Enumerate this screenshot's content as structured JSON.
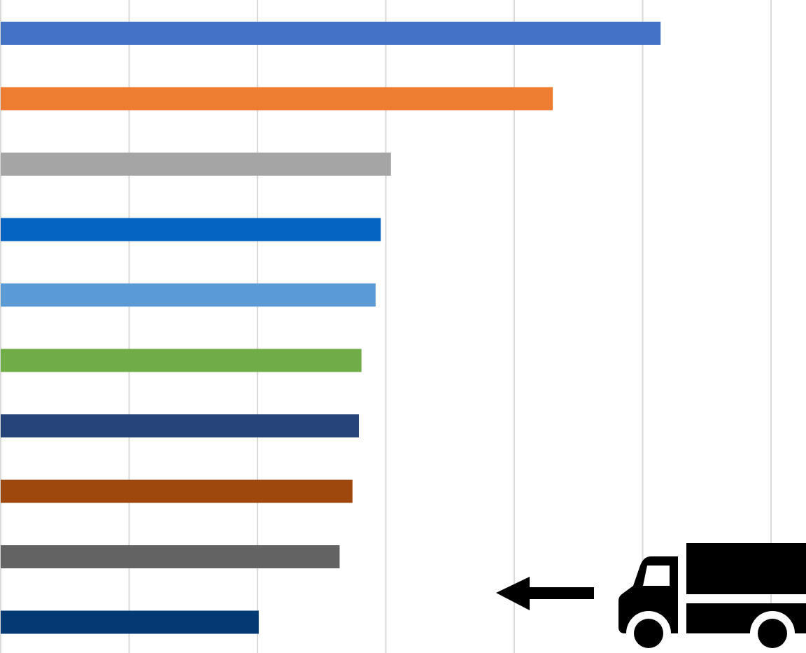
{
  "chart_data": {
    "type": "bar",
    "orientation": "horizontal",
    "title": "",
    "xlabel": "",
    "ylabel": "",
    "xlim": [
      0,
      6
    ],
    "grid": true,
    "legend": "none",
    "categories": [
      "",
      "",
      "",
      "",
      "",
      "",
      "",
      "",
      "",
      ""
    ],
    "values": [
      5.14,
      4.3,
      3.04,
      2.96,
      2.92,
      2.81,
      2.79,
      2.74,
      2.64,
      2.01
    ],
    "colors": [
      "#4472C4",
      "#ED7D31",
      "#A5A5A5",
      "#0563C1",
      "#5B9BD5",
      "#70AD47",
      "#264478",
      "#9E480E",
      "#636363",
      "#033A73"
    ]
  },
  "decorations": {
    "truck_icon": "delivery-truck",
    "arrow_icon": "left-arrow",
    "icon_color": "#000000"
  }
}
